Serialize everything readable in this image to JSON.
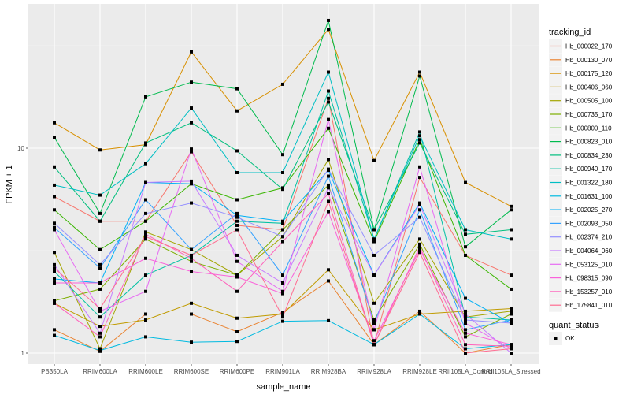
{
  "chart_data": {
    "type": "line",
    "title": "",
    "xlabel": "sample_name",
    "ylabel": "FPKM + 1",
    "yscale": "log10",
    "ylim": [
      0.85,
      55
    ],
    "yticks": [
      1,
      10
    ],
    "ytick_labels": [
      "1",
      "10"
    ],
    "grid": true,
    "legend_position": "right",
    "categories": [
      "PB350LA",
      "RRIM600LA",
      "RRIM600LE",
      "RRIM600SE",
      "RRIM600PE",
      "RRIM901LA",
      "RRIM928BA",
      "RRIM928LA",
      "RRIM928LE",
      "RRII105LA_Control",
      "RRII105LA_Stressed"
    ],
    "legend": {
      "color_title": "tracking_id",
      "shape_title": "quant_status",
      "shape_entries": [
        "OK"
      ]
    },
    "series": [
      {
        "name": "Hb_000022_170",
        "color": "#F8766D",
        "values": [
          5.8,
          4.4,
          4.4,
          9.6,
          4.2,
          4.0,
          17.5,
          1.1,
          7.2,
          3.0,
          2.4
        ]
      },
      {
        "name": "Hb_000130_070",
        "color": "#EA8331",
        "values": [
          1.3,
          1.02,
          1.55,
          1.55,
          1.27,
          1.58,
          2.25,
          1.1,
          1.6,
          1.0,
          1.1
        ]
      },
      {
        "name": "Hb_000175_120",
        "color": "#D89000",
        "values": [
          13.3,
          9.8,
          10.4,
          29.5,
          15.2,
          20.5,
          38.0,
          8.7,
          23.5,
          6.8,
          5.2
        ]
      },
      {
        "name": "Hb_000406_060",
        "color": "#C09B00",
        "values": [
          1.75,
          1.35,
          1.45,
          1.75,
          1.48,
          1.55,
          2.55,
          1.3,
          1.55,
          1.6,
          1.65
        ]
      },
      {
        "name": "Hb_000505_100",
        "color": "#A3A500",
        "values": [
          3.1,
          1.05,
          3.9,
          3.2,
          2.4,
          3.7,
          8.8,
          1.75,
          3.6,
          1.5,
          1.6
        ]
      },
      {
        "name": "Hb_000735_170",
        "color": "#7CAE00",
        "values": [
          1.8,
          2.05,
          3.6,
          2.8,
          2.4,
          4.0,
          6.6,
          1.45,
          3.4,
          1.2,
          1.55
        ]
      },
      {
        "name": "Hb_000800_110",
        "color": "#39B600",
        "values": [
          5.0,
          3.2,
          4.4,
          6.7,
          5.6,
          6.4,
          12.5,
          3.5,
          11.0,
          3.0,
          2.05
        ]
      },
      {
        "name": "Hb_000823_010",
        "color": "#00BB4E",
        "values": [
          11.3,
          4.8,
          17.8,
          21.0,
          19.5,
          9.3,
          42.0,
          4.0,
          22.5,
          3.3,
          5.0
        ]
      },
      {
        "name": "Hb_000834_230",
        "color": "#00BF7D",
        "values": [
          8.1,
          4.4,
          10.6,
          13.3,
          9.7,
          6.3,
          16.8,
          4.0,
          10.6,
          3.8,
          4.0
        ]
      },
      {
        "name": "Hb_000940_170",
        "color": "#00C1A3",
        "values": [
          2.5,
          1.5,
          2.4,
          3.0,
          4.4,
          4.3,
          19.0,
          3.6,
          12.0,
          1.5,
          1.45
        ]
      },
      {
        "name": "Hb_001322_180",
        "color": "#00BFC4",
        "values": [
          6.6,
          5.9,
          8.4,
          15.7,
          7.6,
          7.6,
          23.5,
          3.6,
          11.5,
          4.0,
          3.6
        ]
      },
      {
        "name": "Hb_001631_100",
        "color": "#00BAE0",
        "values": [
          1.22,
          1.03,
          1.2,
          1.13,
          1.14,
          1.43,
          1.44,
          1.1,
          1.55,
          1.05,
          1.1
        ]
      },
      {
        "name": "Hb_002025_270",
        "color": "#00B0F6",
        "values": [
          2.3,
          2.2,
          6.8,
          6.7,
          4.7,
          4.4,
          7.8,
          2.4,
          5.4,
          1.85,
          1.4
        ]
      },
      {
        "name": "Hb_002093_050",
        "color": "#35A2FF",
        "values": [
          4.1,
          2.6,
          5.6,
          3.2,
          4.8,
          2.4,
          7.3,
          1.4,
          5.0,
          1.3,
          1.45
        ]
      },
      {
        "name": "Hb_002374_210",
        "color": "#9590FF",
        "values": [
          4.3,
          2.7,
          4.8,
          5.4,
          4.6,
          3.7,
          7.9,
          3.0,
          4.6,
          1.45,
          1.4
        ]
      },
      {
        "name": "Hb_004064_060",
        "color": "#C77CFF",
        "values": [
          2.7,
          1.25,
          6.8,
          6.9,
          3.0,
          2.2,
          6.4,
          2.4,
          5.3,
          1.55,
          1.0
        ]
      },
      {
        "name": "Hb_053125_010",
        "color": "#E76BF3",
        "values": [
          4.0,
          1.6,
          2.0,
          9.9,
          2.8,
          2.0,
          13.8,
          1.3,
          8.1,
          1.4,
          1.05
        ]
      },
      {
        "name": "Hb_098315_090",
        "color": "#FA62DB",
        "values": [
          2.2,
          2.2,
          2.9,
          2.5,
          2.35,
          1.95,
          4.9,
          1.15,
          3.2,
          1.25,
          1.1
        ]
      },
      {
        "name": "Hb_153257_010",
        "color": "#FF62BC",
        "values": [
          1.75,
          1.2,
          3.8,
          2.9,
          2.0,
          3.5,
          6.0,
          1.1,
          3.3,
          1.1,
          1.08
        ]
      },
      {
        "name": "Hb_175841_010",
        "color": "#FF6C91",
        "values": [
          2.6,
          1.65,
          3.7,
          3.0,
          4.0,
          1.5,
          5.5,
          1.1,
          3.1,
          1.0,
          1.05
        ]
      }
    ]
  }
}
